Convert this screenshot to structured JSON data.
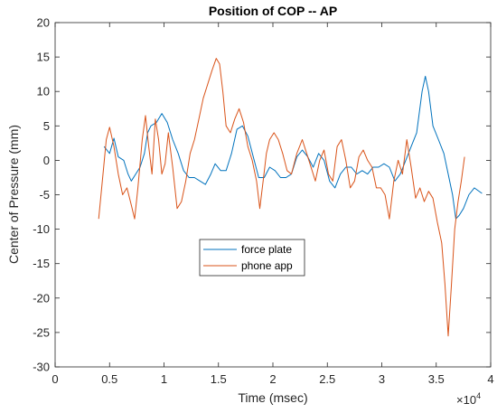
{
  "chart_data": {
    "type": "line",
    "title": "Position of COP -- AP",
    "xlabel": "Time (msec)",
    "ylabel": "Center of Pressure (mm)",
    "x_multiplier": "×10",
    "x_multiplier_exp": "4",
    "xlim": [
      0,
      40000
    ],
    "ylim": [
      -30,
      20
    ],
    "xticks": [
      0,
      5000,
      10000,
      15000,
      20000,
      25000,
      30000,
      35000,
      40000
    ],
    "xtick_labels": [
      "0",
      "0.5",
      "1",
      "1.5",
      "2",
      "2.5",
      "3",
      "3.5",
      "4"
    ],
    "yticks": [
      -30,
      -25,
      -20,
      -15,
      -10,
      -5,
      0,
      5,
      10,
      15,
      20
    ],
    "ytick_labels": [
      "-30",
      "-25",
      "-20",
      "-15",
      "-10",
      "-5",
      "0",
      "5",
      "10",
      "15",
      "20"
    ],
    "grid": false,
    "legend_position": "center-left",
    "series": [
      {
        "name": "force plate",
        "color": "#0072BD",
        "points": [
          [
            4500,
            2
          ],
          [
            5000,
            1
          ],
          [
            5400,
            3.2
          ],
          [
            5800,
            0.5
          ],
          [
            6300,
            0
          ],
          [
            6700,
            -2
          ],
          [
            7000,
            -3
          ],
          [
            7400,
            -2
          ],
          [
            7800,
            -1
          ],
          [
            8200,
            1
          ],
          [
            8500,
            4
          ],
          [
            8800,
            5
          ],
          [
            9300,
            5.5
          ],
          [
            9800,
            6.8
          ],
          [
            10300,
            5.5
          ],
          [
            10800,
            3
          ],
          [
            11300,
            1
          ],
          [
            11800,
            -1.5
          ],
          [
            12300,
            -2.5
          ],
          [
            12800,
            -2.5
          ],
          [
            13300,
            -3
          ],
          [
            13800,
            -3.5
          ],
          [
            14300,
            -2
          ],
          [
            14700,
            -0.5
          ],
          [
            15200,
            -1.5
          ],
          [
            15700,
            -1.5
          ],
          [
            16200,
            1
          ],
          [
            16700,
            4.5
          ],
          [
            17200,
            5
          ],
          [
            17700,
            3.5
          ],
          [
            18200,
            0.5
          ],
          [
            18700,
            -2.5
          ],
          [
            19200,
            -2.5
          ],
          [
            19700,
            -1
          ],
          [
            20200,
            -1.5
          ],
          [
            20700,
            -2.5
          ],
          [
            21200,
            -2.5
          ],
          [
            21700,
            -2
          ],
          [
            22200,
            0.5
          ],
          [
            22700,
            1.5
          ],
          [
            23200,
            0.5
          ],
          [
            23700,
            -1
          ],
          [
            24200,
            1
          ],
          [
            24700,
            0
          ],
          [
            25200,
            -3
          ],
          [
            25700,
            -4
          ],
          [
            26200,
            -2
          ],
          [
            26700,
            -1
          ],
          [
            27200,
            -1
          ],
          [
            27700,
            -2
          ],
          [
            28200,
            -1.5
          ],
          [
            28700,
            -2
          ],
          [
            29200,
            -1
          ],
          [
            29700,
            -1
          ],
          [
            30200,
            -0.5
          ],
          [
            30700,
            -1
          ],
          [
            31200,
            -3
          ],
          [
            31700,
            -2
          ],
          [
            32200,
            0
          ],
          [
            32700,
            2
          ],
          [
            33200,
            4
          ],
          [
            33700,
            10
          ],
          [
            34000,
            12.2
          ],
          [
            34300,
            10
          ],
          [
            34700,
            5
          ],
          [
            35200,
            3
          ],
          [
            35700,
            1
          ],
          [
            36100,
            -2
          ],
          [
            36500,
            -5
          ],
          [
            36800,
            -8.5
          ],
          [
            37100,
            -8
          ],
          [
            37500,
            -7
          ],
          [
            38000,
            -5
          ],
          [
            38500,
            -4
          ],
          [
            39200,
            -4.8
          ]
        ]
      },
      {
        "name": "phone app",
        "color": "#D95319",
        "points": [
          [
            4000,
            -8.5
          ],
          [
            4400,
            -2
          ],
          [
            4700,
            3
          ],
          [
            5000,
            4.8
          ],
          [
            5400,
            2
          ],
          [
            5800,
            -2
          ],
          [
            6200,
            -5
          ],
          [
            6600,
            -4
          ],
          [
            7000,
            -6.5
          ],
          [
            7300,
            -8.5
          ],
          [
            7600,
            -4
          ],
          [
            8000,
            3
          ],
          [
            8300,
            6.5
          ],
          [
            8600,
            2
          ],
          [
            8900,
            -2
          ],
          [
            9200,
            6
          ],
          [
            9500,
            3
          ],
          [
            9800,
            -2
          ],
          [
            10100,
            -0.5
          ],
          [
            10400,
            4
          ],
          [
            10800,
            -1
          ],
          [
            11200,
            -7
          ],
          [
            11600,
            -6
          ],
          [
            12000,
            -3
          ],
          [
            12400,
            1
          ],
          [
            12800,
            3
          ],
          [
            13200,
            6
          ],
          [
            13600,
            9
          ],
          [
            14000,
            11
          ],
          [
            14400,
            13
          ],
          [
            14800,
            14.8
          ],
          [
            15100,
            14
          ],
          [
            15400,
            10
          ],
          [
            15700,
            5
          ],
          [
            16100,
            4
          ],
          [
            16500,
            6
          ],
          [
            16900,
            7.5
          ],
          [
            17300,
            5.5
          ],
          [
            17700,
            2
          ],
          [
            18100,
            0
          ],
          [
            18500,
            -3
          ],
          [
            18800,
            -7
          ],
          [
            19100,
            -3
          ],
          [
            19400,
            1
          ],
          [
            19700,
            3
          ],
          [
            20100,
            4
          ],
          [
            20500,
            3
          ],
          [
            20900,
            1
          ],
          [
            21300,
            -1.5
          ],
          [
            21700,
            -2
          ],
          [
            22200,
            1
          ],
          [
            22700,
            3
          ],
          [
            23100,
            1
          ],
          [
            23500,
            -1
          ],
          [
            23900,
            -3
          ],
          [
            24300,
            0
          ],
          [
            24700,
            1.5
          ],
          [
            25100,
            -2
          ],
          [
            25500,
            -3
          ],
          [
            25900,
            2
          ],
          [
            26300,
            3
          ],
          [
            26700,
            0
          ],
          [
            27100,
            -4
          ],
          [
            27500,
            -3
          ],
          [
            27900,
            0.5
          ],
          [
            28300,
            1.5
          ],
          [
            28700,
            0
          ],
          [
            29100,
            -1
          ],
          [
            29500,
            -4
          ],
          [
            29900,
            -4
          ],
          [
            30300,
            -5
          ],
          [
            30700,
            -8.5
          ],
          [
            31100,
            -3
          ],
          [
            31500,
            0
          ],
          [
            31900,
            -2
          ],
          [
            32300,
            3
          ],
          [
            32700,
            -1
          ],
          [
            33100,
            -5.5
          ],
          [
            33500,
            -4
          ],
          [
            33900,
            -6
          ],
          [
            34300,
            -4.5
          ],
          [
            34700,
            -5.5
          ],
          [
            35100,
            -9
          ],
          [
            35500,
            -12
          ],
          [
            35800,
            -18
          ],
          [
            36100,
            -25.5
          ],
          [
            36400,
            -18
          ],
          [
            36700,
            -10
          ],
          [
            37000,
            -6
          ],
          [
            37300,
            -3
          ],
          [
            37600,
            0.5
          ]
        ]
      }
    ]
  }
}
